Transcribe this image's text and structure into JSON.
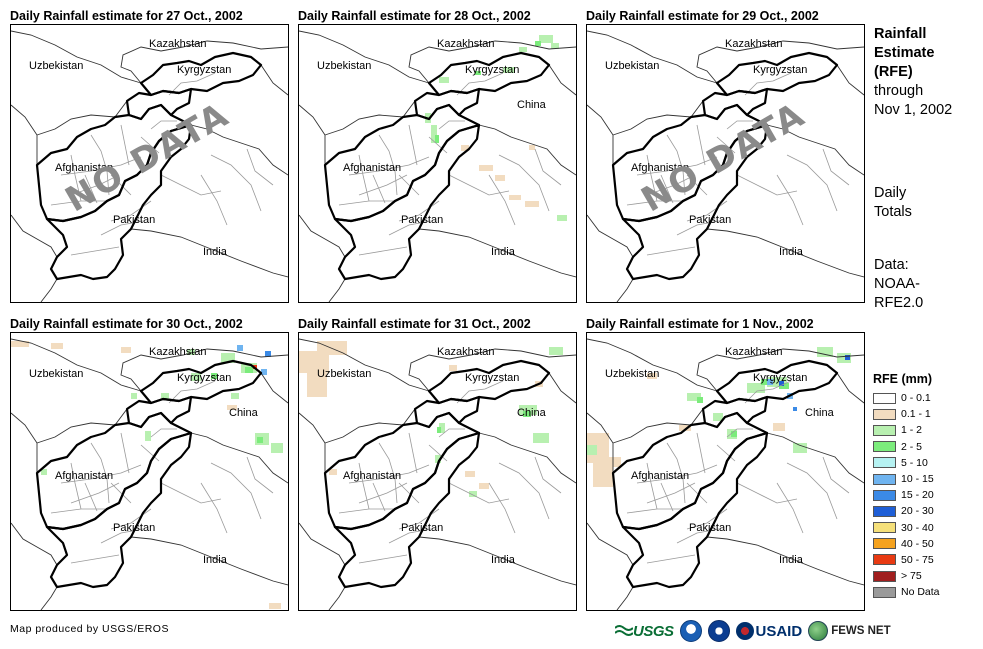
{
  "panels": [
    {
      "title": "Daily Rainfall estimate for 27 Oct., 2002",
      "no_data": true,
      "no_data_label": "NO DATA",
      "china_label": false
    },
    {
      "title": "Daily Rainfall estimate for 28 Oct., 2002",
      "no_data": false,
      "no_data_label": "",
      "china_label": true
    },
    {
      "title": "Daily Rainfall estimate for 29 Oct., 2002",
      "no_data": true,
      "no_data_label": "NO DATA",
      "china_label": false
    },
    {
      "title": "Daily Rainfall estimate for 30 Oct., 2002",
      "no_data": false,
      "no_data_label": "",
      "china_label": true
    },
    {
      "title": "Daily Rainfall estimate for 31 Oct., 2002",
      "no_data": false,
      "no_data_label": "",
      "china_label": true
    },
    {
      "title": "Daily Rainfall estimate for 1 Nov., 2002",
      "no_data": false,
      "no_data_label": "",
      "china_label": true
    }
  ],
  "countries": {
    "kazakhstan": "Kazakhstan",
    "uzbekistan": "Uzbekistan",
    "kyrgyzstan": "Kyrgyzstan",
    "china": "China",
    "afghanistan": "Afghanistan",
    "pakistan": "Pakistan",
    "india": "India"
  },
  "sidebar": {
    "title_line1": "Rainfall",
    "title_line2": "Estimate",
    "title_line3": "(RFE)",
    "title_line4": "through",
    "title_line5": "Nov 1, 2002",
    "totals_line1": "Daily",
    "totals_line2": "Totals",
    "data_line1": "Data:",
    "data_line2": "NOAA-",
    "data_line3": "RFE2.0"
  },
  "legend": {
    "title": "RFE (mm)",
    "items": [
      {
        "label": "0 - 0.1",
        "color": "#ffffff"
      },
      {
        "label": "0.1 - 1",
        "color": "#f2dcc0"
      },
      {
        "label": "1 - 2",
        "color": "#b8f0b0"
      },
      {
        "label": "2 - 5",
        "color": "#7cec7c"
      },
      {
        "label": "5 - 10",
        "color": "#b6f2f2"
      },
      {
        "label": "10 - 15",
        "color": "#6fb4f0"
      },
      {
        "label": "15 - 20",
        "color": "#3b8ae6"
      },
      {
        "label": "20 - 30",
        "color": "#1e5ed6"
      },
      {
        "label": "30 - 40",
        "color": "#f5e07a"
      },
      {
        "label": "40 - 50",
        "color": "#f5a21e"
      },
      {
        "label": "50 - 75",
        "color": "#e83a12"
      },
      {
        "label": "> 75",
        "color": "#a01e1e"
      },
      {
        "label": "No Data",
        "color": "#9a9a9a"
      }
    ]
  },
  "footer": {
    "credit": "Map produced by USGS/EROS",
    "usgs": "USGS",
    "usaid": "USAID",
    "fews": "FEWS NET"
  }
}
